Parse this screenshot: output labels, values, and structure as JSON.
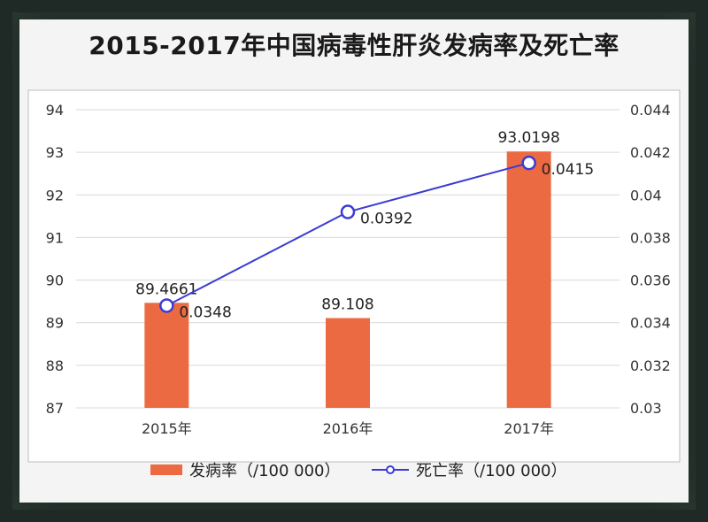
{
  "chart_data": {
    "type": "bar+line",
    "title": "2015-2017年中国病毒性肝炎发病率及死亡率",
    "categories": [
      "2015年",
      "2016年",
      "2017年"
    ],
    "series": [
      {
        "name": "发病率（/100 000）",
        "type": "bar",
        "axis": "left",
        "values": [
          89.4661,
          89.108,
          93.0198
        ],
        "labels": [
          "89.4661",
          "89.108",
          "93.0198"
        ],
        "color": "#ec6a42"
      },
      {
        "name": "死亡率（/100 000）",
        "type": "line",
        "axis": "right",
        "values": [
          0.0348,
          0.0392,
          0.0415
        ],
        "labels": [
          "0.0348",
          "0.0392",
          "0.0415"
        ],
        "color": "#3b3bd4"
      }
    ],
    "y_left": {
      "min": 87,
      "max": 94,
      "ticks": [
        "87",
        "88",
        "89",
        "90",
        "91",
        "92",
        "93",
        "94"
      ]
    },
    "y_right": {
      "min": 0.03,
      "max": 0.044,
      "ticks": [
        "0.03",
        "0.032",
        "0.034",
        "0.036",
        "0.038",
        "0.04",
        "0.042",
        "0.044"
      ]
    },
    "grid": true,
    "legend": "bottom-center"
  }
}
